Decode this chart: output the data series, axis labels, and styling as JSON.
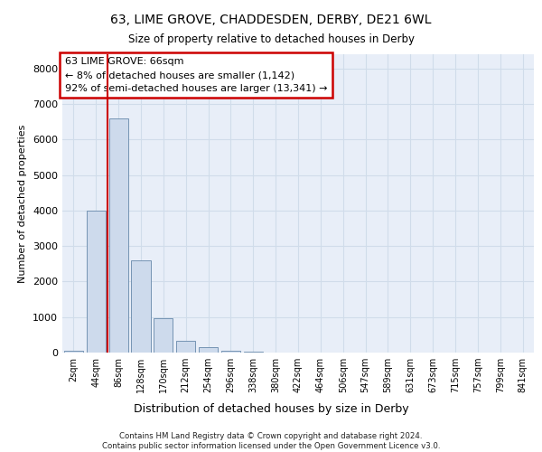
{
  "title1": "63, LIME GROVE, CHADDESDEN, DERBY, DE21 6WL",
  "title2": "Size of property relative to detached houses in Derby",
  "xlabel": "Distribution of detached houses by size in Derby",
  "ylabel": "Number of detached properties",
  "footer": "Contains HM Land Registry data © Crown copyright and database right 2024.\nContains public sector information licensed under the Open Government Licence v3.0.",
  "categories": [
    "2sqm",
    "44sqm",
    "86sqm",
    "128sqm",
    "170sqm",
    "212sqm",
    "254sqm",
    "296sqm",
    "338sqm",
    "380sqm",
    "422sqm",
    "464sqm",
    "506sqm",
    "547sqm",
    "589sqm",
    "631sqm",
    "673sqm",
    "715sqm",
    "757sqm",
    "799sqm",
    "841sqm"
  ],
  "values": [
    50,
    4000,
    6600,
    2600,
    960,
    330,
    150,
    60,
    30,
    10,
    5,
    2,
    1,
    0,
    0,
    0,
    0,
    0,
    0,
    0,
    0
  ],
  "bar_color": "#cddaec",
  "bar_edge_color": "#6688aa",
  "red_line_x": 1.5,
  "annotation_title": "63 LIME GROVE: 66sqm",
  "annotation_line1": "← 8% of detached houses are smaller (1,142)",
  "annotation_line2": "92% of semi-detached houses are larger (13,341) →",
  "annotation_box_color": "#ffffff",
  "annotation_border_color": "#cc0000",
  "red_line_color": "#cc0000",
  "grid_color": "#d0dcea",
  "background_color": "#e8eef8",
  "ylim": [
    0,
    8400
  ],
  "yticks": [
    0,
    1000,
    2000,
    3000,
    4000,
    5000,
    6000,
    7000,
    8000
  ]
}
